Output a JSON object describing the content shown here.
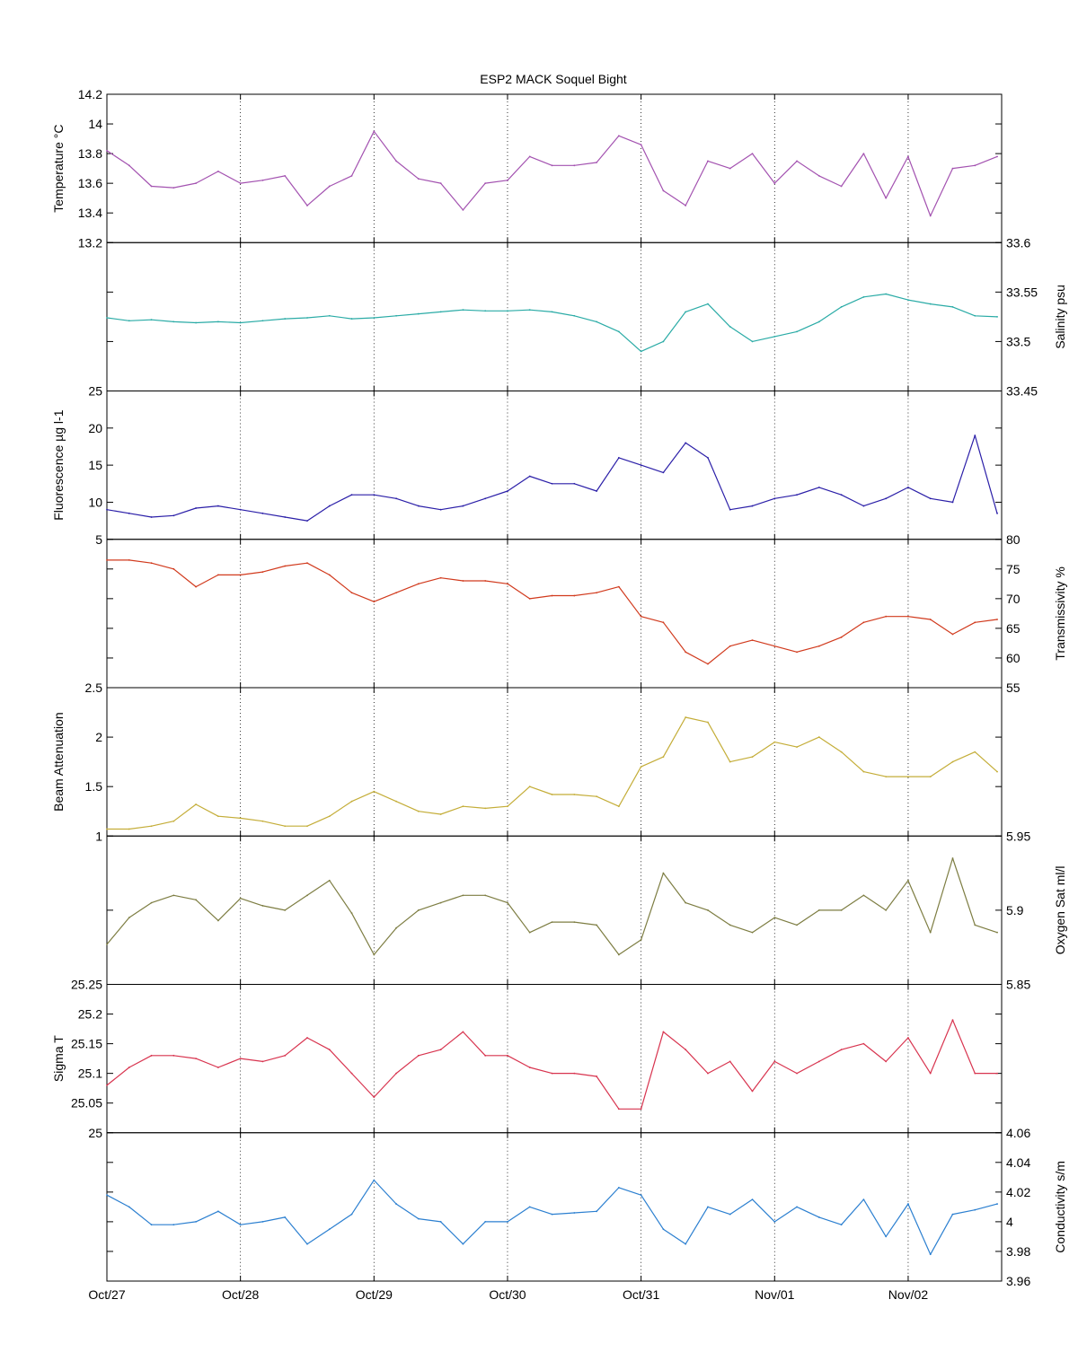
{
  "title": "ESP2 MACK  Soquel Bight",
  "x_axis": {
    "tick_labels": [
      "Oct/27",
      "Oct/28",
      "Oct/29",
      "Oct/30",
      "Oct/31",
      "Nov/01",
      "Nov/02"
    ],
    "range_days": [
      0,
      6.7
    ]
  },
  "chart_data": [
    {
      "type": "line",
      "name": "temperature",
      "ylabel": "Temperature °C",
      "side": "left",
      "color": "#a352b0",
      "ylim": [
        13.2,
        14.2
      ],
      "ticks": [
        13.2,
        13.4,
        13.6,
        13.8,
        14,
        14.2
      ],
      "tick_labels": [
        "13.2",
        "13.4",
        "13.6",
        "13.8",
        "14",
        "14.2"
      ],
      "x_dates": [
        "Oct/27 00:00",
        "Oct/27 04:00",
        "Oct/27 08:00",
        "Oct/27 12:00",
        "Oct/27 16:00",
        "Oct/27 20:00",
        "Oct/28 00:00",
        "Oct/28 04:00",
        "Oct/28 08:00",
        "Oct/28 12:00",
        "Oct/28 16:00",
        "Oct/28 20:00",
        "Oct/29 00:00",
        "Oct/29 04:00",
        "Oct/29 08:00",
        "Oct/29 12:00",
        "Oct/29 16:00",
        "Oct/29 20:00",
        "Oct/30 00:00",
        "Oct/30 04:00",
        "Oct/30 08:00",
        "Oct/30 12:00",
        "Oct/30 16:00",
        "Oct/30 20:00",
        "Oct/31 00:00",
        "Oct/31 04:00",
        "Oct/31 08:00",
        "Oct/31 12:00",
        "Oct/31 16:00",
        "Oct/31 20:00",
        "Nov/01 00:00",
        "Nov/01 04:00",
        "Nov/01 08:00",
        "Nov/01 12:00",
        "Nov/01 16:00",
        "Nov/01 20:00",
        "Nov/02 00:00",
        "Nov/02 04:00",
        "Nov/02 08:00",
        "Nov/02 12:00",
        "Nov/02 16:00"
      ],
      "values": [
        13.82,
        13.72,
        13.58,
        13.57,
        13.6,
        13.68,
        13.6,
        13.62,
        13.65,
        13.45,
        13.58,
        13.65,
        13.95,
        13.75,
        13.63,
        13.6,
        13.42,
        13.6,
        13.62,
        13.78,
        13.72,
        13.72,
        13.74,
        13.92,
        13.86,
        13.55,
        13.45,
        13.75,
        13.7,
        13.8,
        13.6,
        13.75,
        13.65,
        13.58,
        13.8,
        13.5,
        13.78,
        13.38,
        13.7,
        13.72,
        13.78
      ]
    },
    {
      "type": "line",
      "name": "salinity",
      "ylabel": "Salinity psu",
      "side": "right",
      "color": "#2aaba6",
      "ylim": [
        33.45,
        33.6
      ],
      "ticks": [
        33.45,
        33.5,
        33.55,
        33.6
      ],
      "tick_labels": [
        "33.45",
        "33.5",
        "33.55",
        "33.6"
      ],
      "x_dates": [
        "Oct/27 00:00",
        "Oct/27 04:00",
        "Oct/27 08:00",
        "Oct/27 12:00",
        "Oct/27 16:00",
        "Oct/27 20:00",
        "Oct/28 00:00",
        "Oct/28 04:00",
        "Oct/28 08:00",
        "Oct/28 12:00",
        "Oct/28 16:00",
        "Oct/28 20:00",
        "Oct/29 00:00",
        "Oct/29 04:00",
        "Oct/29 08:00",
        "Oct/29 12:00",
        "Oct/29 16:00",
        "Oct/29 20:00",
        "Oct/30 00:00",
        "Oct/30 04:00",
        "Oct/30 08:00",
        "Oct/30 12:00",
        "Oct/30 16:00",
        "Oct/30 20:00",
        "Oct/31 00:00",
        "Oct/31 04:00",
        "Oct/31 08:00",
        "Oct/31 12:00",
        "Oct/31 16:00",
        "Oct/31 20:00",
        "Nov/01 00:00",
        "Nov/01 04:00",
        "Nov/01 08:00",
        "Nov/01 12:00",
        "Nov/01 16:00",
        "Nov/01 20:00",
        "Nov/02 00:00",
        "Nov/02 04:00",
        "Nov/02 08:00",
        "Nov/02 12:00",
        "Nov/02 16:00"
      ],
      "values": [
        33.524,
        33.521,
        33.522,
        33.52,
        33.519,
        33.52,
        33.519,
        33.521,
        33.523,
        33.524,
        33.526,
        33.523,
        33.524,
        33.526,
        33.528,
        33.53,
        33.532,
        33.531,
        33.531,
        33.532,
        33.53,
        33.526,
        33.52,
        33.51,
        33.49,
        33.5,
        33.53,
        33.538,
        33.515,
        33.5,
        33.505,
        33.51,
        33.52,
        33.535,
        33.545,
        33.548,
        33.542,
        33.538,
        33.535,
        33.526,
        33.525
      ]
    },
    {
      "type": "line",
      "name": "fluorescence",
      "ylabel": "Fluorescence µg l-1",
      "side": "left",
      "color": "#2b1fa8",
      "ylim": [
        5,
        25
      ],
      "ticks": [
        5,
        10,
        15,
        20,
        25
      ],
      "tick_labels": [
        "5",
        "10",
        "15",
        "20",
        "25"
      ],
      "x_dates": [
        "Oct/27 00:00",
        "Oct/27 04:00",
        "Oct/27 08:00",
        "Oct/27 12:00",
        "Oct/27 16:00",
        "Oct/27 20:00",
        "Oct/28 00:00",
        "Oct/28 04:00",
        "Oct/28 08:00",
        "Oct/28 12:00",
        "Oct/28 16:00",
        "Oct/28 20:00",
        "Oct/29 00:00",
        "Oct/29 04:00",
        "Oct/29 08:00",
        "Oct/29 12:00",
        "Oct/29 16:00",
        "Oct/29 20:00",
        "Oct/30 00:00",
        "Oct/30 04:00",
        "Oct/30 08:00",
        "Oct/30 12:00",
        "Oct/30 16:00",
        "Oct/30 20:00",
        "Oct/31 00:00",
        "Oct/31 04:00",
        "Oct/31 08:00",
        "Oct/31 12:00",
        "Oct/31 16:00",
        "Oct/31 20:00",
        "Nov/01 00:00",
        "Nov/01 04:00",
        "Nov/01 08:00",
        "Nov/01 12:00",
        "Nov/01 16:00",
        "Nov/01 20:00",
        "Nov/02 00:00",
        "Nov/02 04:00",
        "Nov/02 08:00",
        "Nov/02 12:00",
        "Nov/02 16:00"
      ],
      "values": [
        9,
        8.5,
        8,
        8.2,
        9.2,
        9.5,
        9,
        8.5,
        8,
        7.5,
        9.5,
        11,
        11,
        10.5,
        9.5,
        9,
        9.5,
        10.5,
        11.5,
        13.5,
        12.5,
        12.5,
        11.5,
        16,
        15,
        14,
        18,
        16,
        9,
        9.5,
        10.5,
        11,
        12,
        11,
        9.5,
        10.5,
        12,
        10.5,
        10,
        19,
        8.5
      ]
    },
    {
      "type": "line",
      "name": "transmissivity",
      "ylabel": "Transmissivity %",
      "side": "right",
      "color": "#d13a1d",
      "ylim": [
        55,
        80
      ],
      "ticks": [
        55,
        60,
        65,
        70,
        75,
        80
      ],
      "tick_labels": [
        "55",
        "60",
        "65",
        "70",
        "75",
        "80"
      ],
      "x_dates": [
        "Oct/27 00:00",
        "Oct/27 04:00",
        "Oct/27 08:00",
        "Oct/27 12:00",
        "Oct/27 16:00",
        "Oct/27 20:00",
        "Oct/28 00:00",
        "Oct/28 04:00",
        "Oct/28 08:00",
        "Oct/28 12:00",
        "Oct/28 16:00",
        "Oct/28 20:00",
        "Oct/29 00:00",
        "Oct/29 04:00",
        "Oct/29 08:00",
        "Oct/29 12:00",
        "Oct/29 16:00",
        "Oct/29 20:00",
        "Oct/30 00:00",
        "Oct/30 04:00",
        "Oct/30 08:00",
        "Oct/30 12:00",
        "Oct/30 16:00",
        "Oct/30 20:00",
        "Oct/31 00:00",
        "Oct/31 04:00",
        "Oct/31 08:00",
        "Oct/31 12:00",
        "Oct/31 16:00",
        "Oct/31 20:00",
        "Nov/01 00:00",
        "Nov/01 04:00",
        "Nov/01 08:00",
        "Nov/01 12:00",
        "Nov/01 16:00",
        "Nov/01 20:00",
        "Nov/02 00:00",
        "Nov/02 04:00",
        "Nov/02 08:00",
        "Nov/02 12:00",
        "Nov/02 16:00"
      ],
      "values": [
        76.5,
        76.5,
        76,
        75,
        72,
        74,
        74,
        74.5,
        75.5,
        76,
        74,
        71,
        69.5,
        71,
        72.5,
        73.5,
        73,
        73,
        72.5,
        70,
        70.5,
        70.5,
        71,
        72,
        67,
        66,
        61,
        59,
        62,
        63,
        62,
        61,
        62,
        63.5,
        66,
        67,
        67,
        66.5,
        64,
        66,
        66.5
      ]
    },
    {
      "type": "line",
      "name": "beam-attenuation",
      "ylabel": "Beam Attenuation",
      "side": "left",
      "color": "#c4ad38",
      "ylim": [
        1,
        2.5
      ],
      "ticks": [
        1,
        1.5,
        2,
        2.5
      ],
      "tick_labels": [
        "1",
        "1.5",
        "2",
        "2.5"
      ],
      "x_dates": [
        "Oct/27 00:00",
        "Oct/27 04:00",
        "Oct/27 08:00",
        "Oct/27 12:00",
        "Oct/27 16:00",
        "Oct/27 20:00",
        "Oct/28 00:00",
        "Oct/28 04:00",
        "Oct/28 08:00",
        "Oct/28 12:00",
        "Oct/28 16:00",
        "Oct/28 20:00",
        "Oct/29 00:00",
        "Oct/29 04:00",
        "Oct/29 08:00",
        "Oct/29 12:00",
        "Oct/29 16:00",
        "Oct/29 20:00",
        "Oct/30 00:00",
        "Oct/30 04:00",
        "Oct/30 08:00",
        "Oct/30 12:00",
        "Oct/30 16:00",
        "Oct/30 20:00",
        "Oct/31 00:00",
        "Oct/31 04:00",
        "Oct/31 08:00",
        "Oct/31 12:00",
        "Oct/31 16:00",
        "Oct/31 20:00",
        "Nov/01 00:00",
        "Nov/01 04:00",
        "Nov/01 08:00",
        "Nov/01 12:00",
        "Nov/01 16:00",
        "Nov/01 20:00",
        "Nov/02 00:00",
        "Nov/02 04:00",
        "Nov/02 08:00",
        "Nov/02 12:00",
        "Nov/02 16:00"
      ],
      "values": [
        1.07,
        1.07,
        1.1,
        1.15,
        1.32,
        1.2,
        1.18,
        1.15,
        1.1,
        1.1,
        1.2,
        1.35,
        1.45,
        1.35,
        1.25,
        1.22,
        1.3,
        1.28,
        1.3,
        1.5,
        1.42,
        1.42,
        1.4,
        1.3,
        1.7,
        1.8,
        2.2,
        2.15,
        1.75,
        1.8,
        1.95,
        1.9,
        2.0,
        1.85,
        1.65,
        1.6,
        1.6,
        1.6,
        1.75,
        1.85,
        1.65
      ]
    },
    {
      "type": "line",
      "name": "oxygen",
      "ylabel": "Oxygen Sat ml/l",
      "side": "right",
      "color": "#7d7d42",
      "ylim": [
        5.85,
        5.95
      ],
      "ticks": [
        5.85,
        5.9,
        5.95
      ],
      "tick_labels": [
        "5.85",
        "5.9",
        "5.95"
      ],
      "x_dates": [
        "Oct/27 00:00",
        "Oct/27 04:00",
        "Oct/27 08:00",
        "Oct/27 12:00",
        "Oct/27 16:00",
        "Oct/27 20:00",
        "Oct/28 00:00",
        "Oct/28 04:00",
        "Oct/28 08:00",
        "Oct/28 12:00",
        "Oct/28 16:00",
        "Oct/28 20:00",
        "Oct/29 00:00",
        "Oct/29 04:00",
        "Oct/29 08:00",
        "Oct/29 12:00",
        "Oct/29 16:00",
        "Oct/29 20:00",
        "Oct/30 00:00",
        "Oct/30 04:00",
        "Oct/30 08:00",
        "Oct/30 12:00",
        "Oct/30 16:00",
        "Oct/30 20:00",
        "Oct/31 00:00",
        "Oct/31 04:00",
        "Oct/31 08:00",
        "Oct/31 12:00",
        "Oct/31 16:00",
        "Oct/31 20:00",
        "Nov/01 00:00",
        "Nov/01 04:00",
        "Nov/01 08:00",
        "Nov/01 12:00",
        "Nov/01 16:00",
        "Nov/01 20:00",
        "Nov/02 00:00",
        "Nov/02 04:00",
        "Nov/02 08:00",
        "Nov/02 12:00",
        "Nov/02 16:00"
      ],
      "values": [
        5.877,
        5.895,
        5.905,
        5.91,
        5.907,
        5.893,
        5.908,
        5.903,
        5.9,
        5.91,
        5.92,
        5.898,
        5.87,
        5.888,
        5.9,
        5.905,
        5.91,
        5.91,
        5.905,
        5.885,
        5.892,
        5.892,
        5.89,
        5.87,
        5.88,
        5.925,
        5.905,
        5.9,
        5.89,
        5.885,
        5.895,
        5.89,
        5.9,
        5.9,
        5.91,
        5.9,
        5.92,
        5.885,
        5.935,
        5.89,
        5.885
      ]
    },
    {
      "type": "line",
      "name": "sigma-t",
      "ylabel": "Sigma T",
      "side": "left",
      "color": "#d8344f",
      "ylim": [
        25,
        25.25
      ],
      "ticks": [
        25,
        25.05,
        25.1,
        25.15,
        25.2,
        25.25
      ],
      "tick_labels": [
        "25",
        "25.05",
        "25.1",
        "25.15",
        "25.2",
        "25.25"
      ],
      "x_dates": [
        "Oct/27 00:00",
        "Oct/27 04:00",
        "Oct/27 08:00",
        "Oct/27 12:00",
        "Oct/27 16:00",
        "Oct/27 20:00",
        "Oct/28 00:00",
        "Oct/28 04:00",
        "Oct/28 08:00",
        "Oct/28 12:00",
        "Oct/28 16:00",
        "Oct/28 20:00",
        "Oct/29 00:00",
        "Oct/29 04:00",
        "Oct/29 08:00",
        "Oct/29 12:00",
        "Oct/29 16:00",
        "Oct/29 20:00",
        "Oct/30 00:00",
        "Oct/30 04:00",
        "Oct/30 08:00",
        "Oct/30 12:00",
        "Oct/30 16:00",
        "Oct/30 20:00",
        "Oct/31 00:00",
        "Oct/31 04:00",
        "Oct/31 08:00",
        "Oct/31 12:00",
        "Oct/31 16:00",
        "Oct/31 20:00",
        "Nov/01 00:00",
        "Nov/01 04:00",
        "Nov/01 08:00",
        "Nov/01 12:00",
        "Nov/01 16:00",
        "Nov/01 20:00",
        "Nov/02 00:00",
        "Nov/02 04:00",
        "Nov/02 08:00",
        "Nov/02 12:00",
        "Nov/02 16:00"
      ],
      "values": [
        25.08,
        25.11,
        25.13,
        25.13,
        25.125,
        25.11,
        25.125,
        25.12,
        25.13,
        25.16,
        25.14,
        25.1,
        25.06,
        25.1,
        25.13,
        25.14,
        25.17,
        25.13,
        25.13,
        25.11,
        25.1,
        25.1,
        25.095,
        25.04,
        25.04,
        25.17,
        25.14,
        25.1,
        25.12,
        25.07,
        25.12,
        25.1,
        25.12,
        25.14,
        25.15,
        25.12,
        25.16,
        25.1,
        25.19,
        25.1,
        25.1
      ]
    },
    {
      "type": "line",
      "name": "conductivity",
      "ylabel": "Conductivity s/m",
      "side": "right",
      "color": "#2b7fd0",
      "ylim": [
        3.96,
        4.06
      ],
      "ticks": [
        3.96,
        3.98,
        4,
        4.02,
        4.04,
        4.06
      ],
      "tick_labels": [
        "3.96",
        "3.98",
        "4",
        "4.02",
        "4.04",
        "4.06"
      ],
      "x_dates": [
        "Oct/27 00:00",
        "Oct/27 04:00",
        "Oct/27 08:00",
        "Oct/27 12:00",
        "Oct/27 16:00",
        "Oct/27 20:00",
        "Oct/28 00:00",
        "Oct/28 04:00",
        "Oct/28 08:00",
        "Oct/28 12:00",
        "Oct/28 16:00",
        "Oct/28 20:00",
        "Oct/29 00:00",
        "Oct/29 04:00",
        "Oct/29 08:00",
        "Oct/29 12:00",
        "Oct/29 16:00",
        "Oct/29 20:00",
        "Oct/30 00:00",
        "Oct/30 04:00",
        "Oct/30 08:00",
        "Oct/30 12:00",
        "Oct/30 16:00",
        "Oct/30 20:00",
        "Oct/31 00:00",
        "Oct/31 04:00",
        "Oct/31 08:00",
        "Oct/31 12:00",
        "Oct/31 16:00",
        "Oct/31 20:00",
        "Nov/01 00:00",
        "Nov/01 04:00",
        "Nov/01 08:00",
        "Nov/01 12:00",
        "Nov/01 16:00",
        "Nov/01 20:00",
        "Nov/02 00:00",
        "Nov/02 04:00",
        "Nov/02 08:00",
        "Nov/02 12:00",
        "Nov/02 16:00"
      ],
      "values": [
        4.018,
        4.01,
        3.998,
        3.998,
        4.0,
        4.007,
        3.998,
        4.0,
        4.003,
        3.985,
        3.995,
        4.005,
        4.028,
        4.012,
        4.002,
        4.0,
        3.985,
        4.0,
        4.0,
        4.01,
        4.005,
        4.006,
        4.007,
        4.023,
        4.018,
        3.995,
        3.985,
        4.01,
        4.005,
        4.015,
        4.0,
        4.01,
        4.003,
        3.998,
        4.015,
        3.99,
        4.012,
        3.978,
        4.005,
        4.008,
        4.012
      ]
    }
  ]
}
